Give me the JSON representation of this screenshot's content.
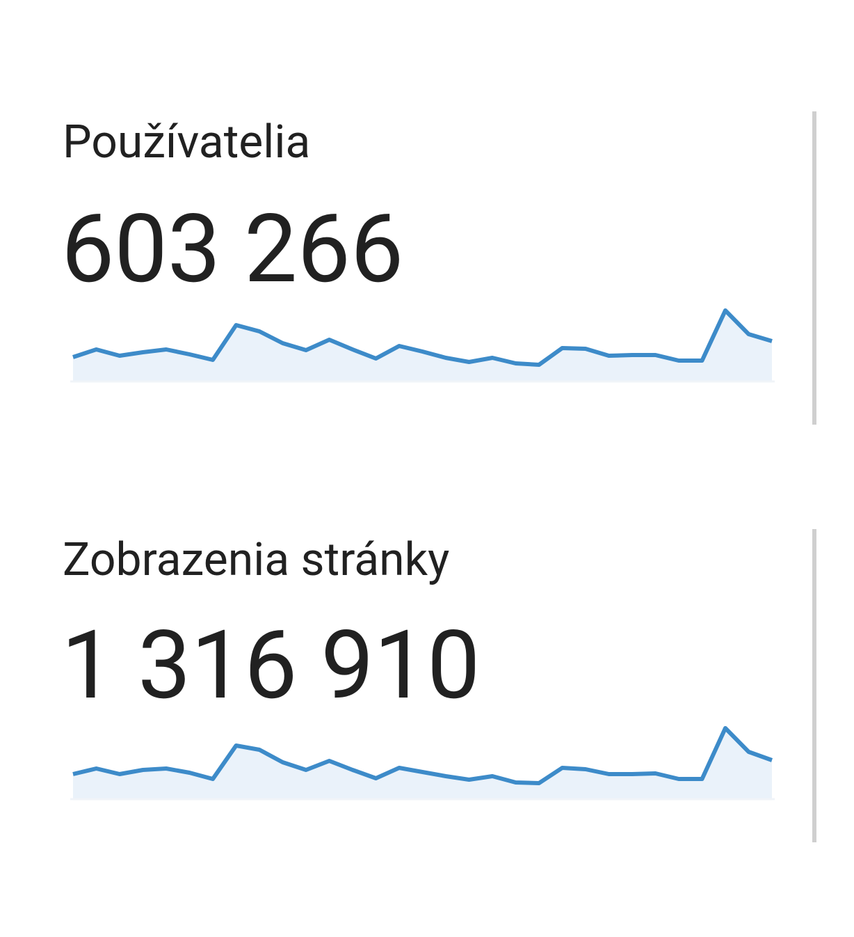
{
  "cards": [
    {
      "label": "Používatelia",
      "value": "603 266"
    },
    {
      "label": "Zobrazenia stránky",
      "value": "1 316 910"
    }
  ],
  "chart_data": [
    {
      "type": "line",
      "color": "#3d8bc9",
      "fill": "#eaf2fa",
      "ylim": [
        0,
        110
      ],
      "values": [
        35,
        46,
        37,
        42,
        46,
        39,
        31,
        81,
        72,
        55,
        45,
        60,
        46,
        33,
        51,
        43,
        34,
        28,
        34,
        26,
        24,
        48,
        47,
        37,
        38,
        38,
        30,
        30,
        102,
        68,
        58
      ]
    },
    {
      "type": "line",
      "color": "#3d8bc9",
      "fill": "#eaf2fa",
      "ylim": [
        0,
        110
      ],
      "values": [
        36,
        44,
        36,
        42,
        44,
        38,
        29,
        77,
        71,
        53,
        42,
        55,
        42,
        30,
        45,
        39,
        33,
        28,
        33,
        24,
        23,
        45,
        43,
        36,
        36,
        37,
        29,
        29,
        102,
        68,
        56
      ]
    }
  ]
}
